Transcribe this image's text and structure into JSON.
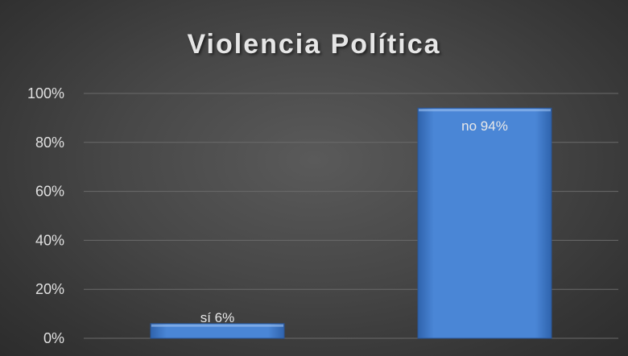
{
  "chart_data": {
    "type": "bar",
    "title": "Violencia Política",
    "categories": [
      "sí",
      "no"
    ],
    "values": [
      6,
      94
    ],
    "data_labels": [
      "sí 6%",
      "no 94%"
    ],
    "ylim": [
      0,
      100
    ],
    "yticks": [
      "0%",
      "20%",
      "40%",
      "60%",
      "80%",
      "100%"
    ],
    "grid": true,
    "legend": "none",
    "colors": {
      "bar": "#4a86d6",
      "background": "#474747",
      "text": "#e6e6e6"
    }
  }
}
